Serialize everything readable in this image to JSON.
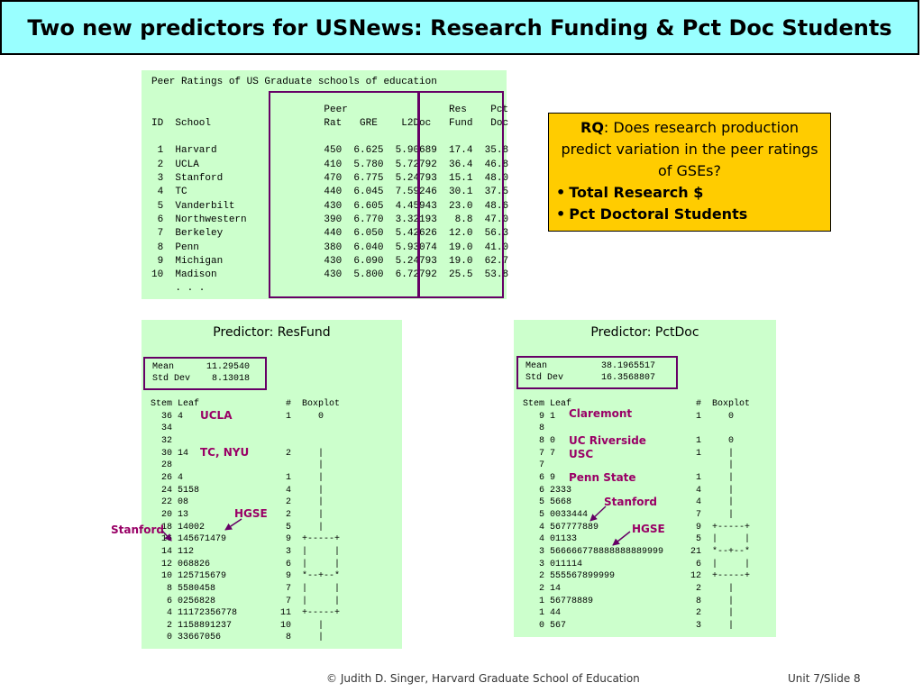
{
  "slide": {
    "title": "Two new predictors for USNews: Research Funding & Pct Doc Students",
    "footer_left": "© Judith D. Singer, Harvard Graduate School of Education",
    "footer_right": "Unit 7/Slide 8"
  },
  "peer_table": {
    "text": "Peer Ratings of US Graduate schools of education\n\n                             Peer                 Res    Pct\nID  School                   Rat   GRE    L2Doc   Fund   Doc\n\n 1  Harvard                  450  6.625  5.90689  17.4  35.8\n 2  UCLA                     410  5.780  5.72792  36.4  46.8\n 3  Stanford                 470  6.775  5.24793  15.1  48.0\n 4  TC                       440  6.045  7.59246  30.1  37.5\n 5  Vanderbilt               430  6.605  4.45943  23.0  48.6\n 6  Northwestern             390  6.770  3.32193   8.8  47.0\n 7  Berkeley                 440  6.050  5.42626  12.0  56.3\n 8  Penn                     380  6.040  5.93074  19.0  41.0\n 9  Michigan                 430  6.090  5.24793  19.0  62.7\n10  Madison                  430  5.800  6.72792  25.5  53.8\n    . . ."
  },
  "rq_box": {
    "label": "RQ",
    "question": ": Does research production predict variation in the peer ratings of GSEs?",
    "bullets": [
      "Total Research $",
      "Pct Doctoral Students"
    ]
  },
  "resfund": {
    "title": "Predictor: ResFund",
    "stats": "Mean      11.29540\nStd Dev    8.13018",
    "stemleaf": "Stem Leaf                #  Boxplot\n  36 4                   1     0\n  34\n  32\n  30 14                  2     |\n  28                           |\n  26 4                   1     |\n  24 5158                4     |\n  22 08                  2     |\n  20 13                  2     |\n  18 14002               5     |\n  16 145671479           9  +-----+\n  14 112                 3  |     |\n  12 068826              6  |     |\n  10 125715679           9  *--+--*\n   8 5580458             7  |     |\n   6 0256828             7  |     |\n   4 11172356778        11  +-----+\n   2 1158891237         10     |\n   0 33667056            8     |",
    "annotations": {
      "ucla": "UCLA",
      "tc_nyu": "TC, NYU",
      "hgse": "HGSE",
      "stanford": "Stanford"
    }
  },
  "pctdoc": {
    "title": "Predictor: PctDoc",
    "stats": "Mean          38.1965517\nStd Dev       16.3568807",
    "stemleaf": "Stem Leaf                       #  Boxplot\n   9 1                          1     0\n   8\n   8 0                          1     0\n   7 7                          1     |\n   7                                  |\n   6 9                          1     |\n   6 2333                       4     |\n   5 5668                       4     |\n   5 0033444                    7     |\n   4 567777889                  9  +-----+\n   4 01133                      5  |     |\n   3 566666778888888889999     21  *--+--*\n   3 011114                     6  |     |\n   2 555567899999              12  +-----+\n   2 14                         2     |\n   1 56778889                   8     |\n   1 44                         2     |\n   0 567                        3     |",
    "annotations": {
      "claremont": "Claremont",
      "uc_riverside": "UC Riverside",
      "usc": "USC",
      "penn_state": "Penn State",
      "stanford": "Stanford",
      "hgse": "HGSE"
    }
  },
  "colors": {
    "title_bg": "#99ffff",
    "panel_bg": "#ccffcc",
    "rq_bg": "#ffcc00",
    "frame": "#660066",
    "annotation": "#990066"
  }
}
